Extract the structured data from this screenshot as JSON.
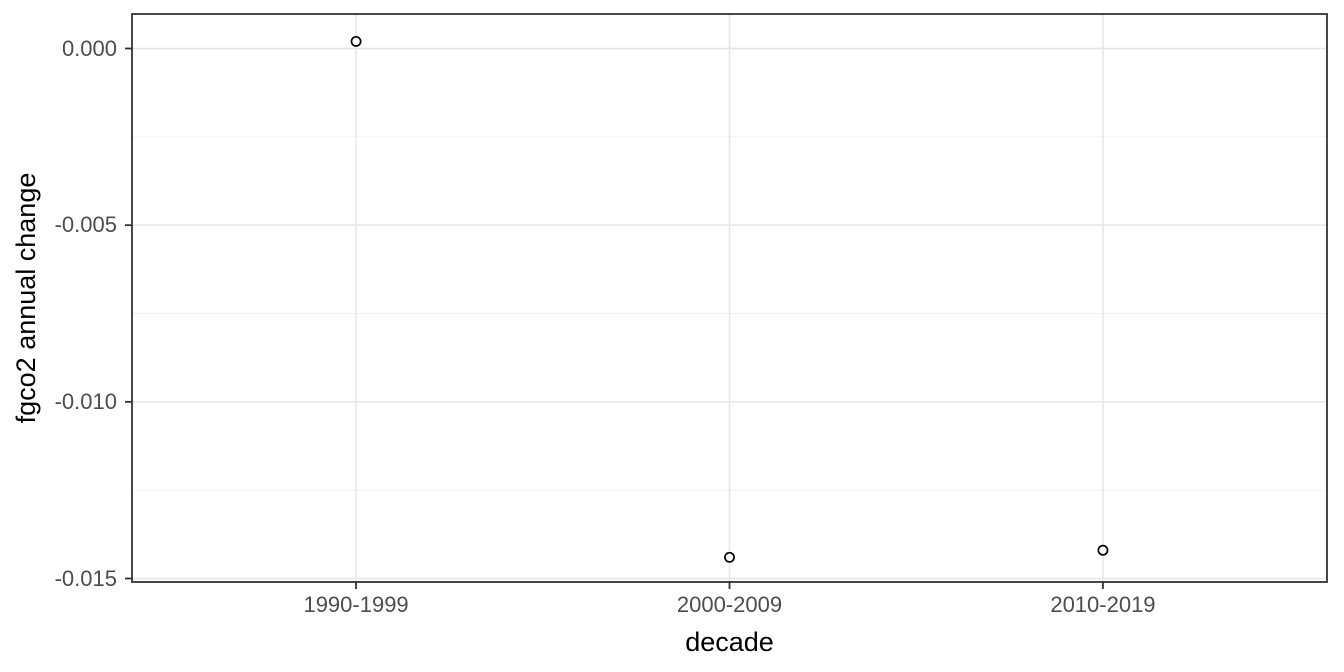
{
  "chart_data": {
    "type": "scatter",
    "title": "",
    "xlabel": "decade",
    "ylabel": "fgco2 annual change",
    "categories": [
      "1990-1999",
      "2000-2009",
      "2010-2019"
    ],
    "values": [
      0.0002,
      -0.0144,
      -0.0142
    ],
    "y_ticks": [
      0,
      -0.005,
      -0.01,
      -0.015
    ],
    "y_tick_labels": [
      "0.000",
      "-0.005",
      "-0.010",
      "-0.015"
    ],
    "ylim": [
      -0.0152,
      0.001
    ],
    "grid": "horizontal major+minor, vertical major at each category",
    "legend_position": "none",
    "marker": "open-circle"
  },
  "colors": {
    "background": "#ffffff",
    "panel_border": "#333333",
    "grid_major": "#e6e6e6",
    "grid_minor": "#f0f0f0",
    "tick": "#333333",
    "tick_label": "#4d4d4d",
    "axis_title": "#000000",
    "point_stroke": "#000000",
    "point_fill": "#ffffff"
  }
}
